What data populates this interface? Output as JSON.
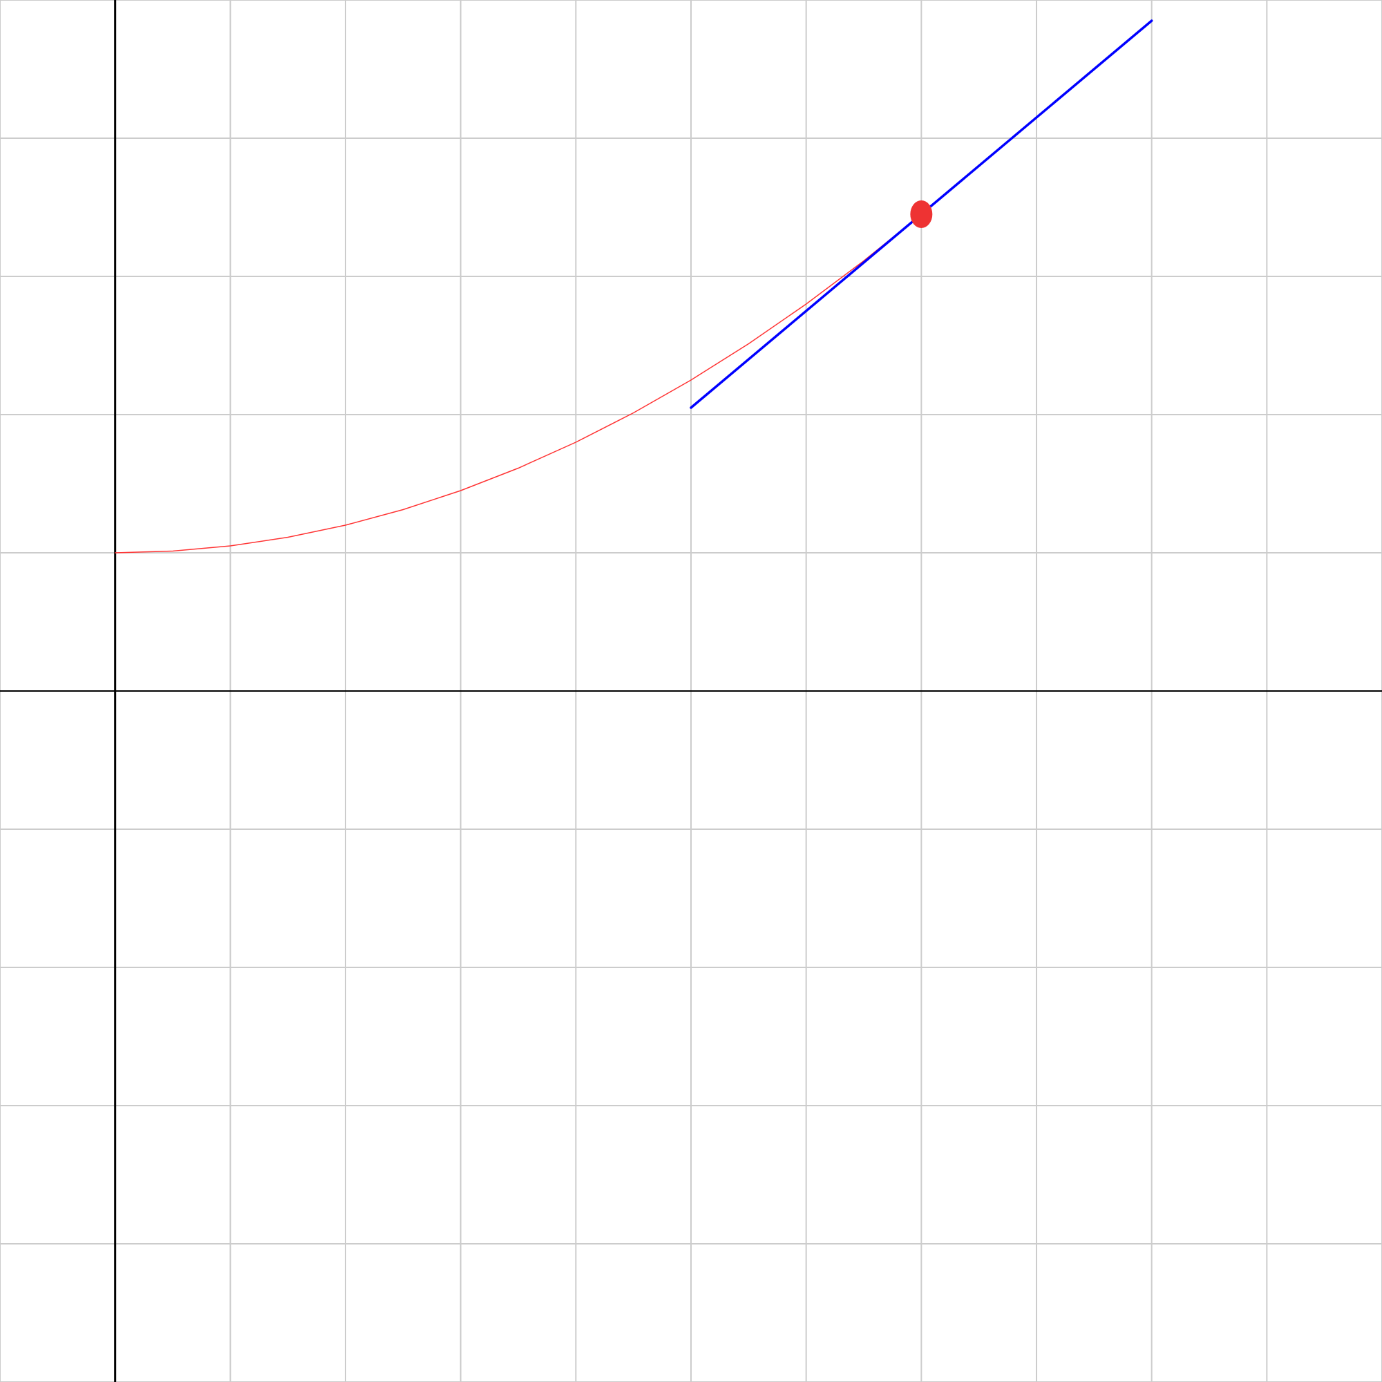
{
  "chart_data": {
    "type": "line",
    "xlim": [
      -1,
      11
    ],
    "ylim": [
      -5,
      5
    ],
    "xticks": [
      -1,
      0,
      1,
      2,
      3,
      4,
      5,
      6,
      7,
      8,
      9,
      10,
      11
    ],
    "yticks": [
      -5,
      -4,
      -3,
      -2,
      -1,
      0,
      1,
      2,
      3,
      4,
      5
    ],
    "grid": true,
    "series": [
      {
        "color": "#ff3333",
        "width": 1.5,
        "x": [
          0,
          0.5,
          1,
          1.5,
          2,
          2.5,
          3,
          3.5,
          4,
          4.5,
          5,
          5.5,
          6,
          6.5,
          7
        ],
        "values": [
          1,
          1.0125,
          1.05,
          1.1125,
          1.2,
          1.3125,
          1.45,
          1.6125,
          1.8,
          2.0125,
          2.25,
          2.5125,
          2.8,
          3.1125,
          3.45
        ]
      },
      {
        "color": "#0000ff",
        "width": 3.5,
        "x": [
          5,
          9
        ],
        "values": [
          2.05,
          4.85
        ]
      },
      {
        "color": "#ee3333",
        "mode": "markers",
        "x": [
          7
        ],
        "values": [
          3.45
        ]
      }
    ]
  }
}
